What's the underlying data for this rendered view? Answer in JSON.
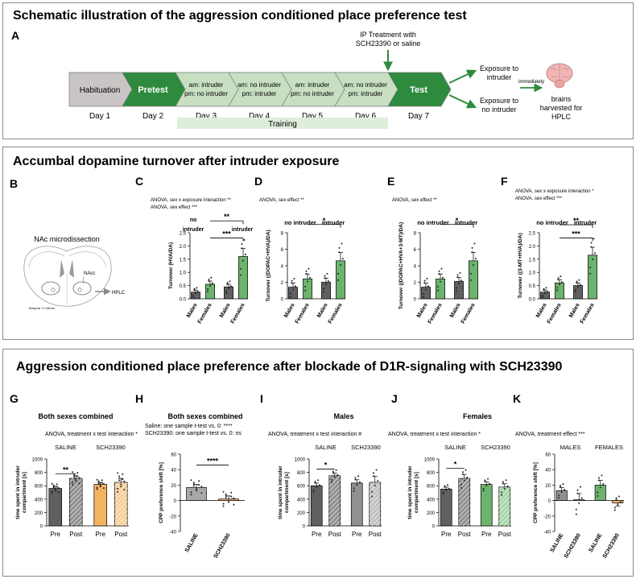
{
  "panelA": {
    "title": "Schematic illustration of the aggression conditioned place preference test",
    "letter": "A",
    "ip_line1": "IP Treatment with",
    "ip_line2": "SCH23390 or saline",
    "stages": [
      {
        "l1": "Habituation",
        "l2": "",
        "day": "Day 1",
        "style": "gray"
      },
      {
        "l1": "Pretest",
        "l2": "",
        "day": "Day 2",
        "style": "dark"
      },
      {
        "l1": "am: intruder",
        "l2": "pm: no intruder",
        "day": "Day 3",
        "style": "light"
      },
      {
        "l1": "am: no intruder",
        "l2": "pm: intruder",
        "day": "Day 4",
        "style": "light"
      },
      {
        "l1": "am: intruder",
        "l2": "pm: no intruder",
        "day": "Day 5",
        "style": "light"
      },
      {
        "l1": "am: no intruder",
        "l2": "pm: intruder",
        "day": "Day 6",
        "style": "light"
      },
      {
        "l1": "Test",
        "l2": "",
        "day": "Day 7",
        "style": "dark"
      }
    ],
    "training": "Training",
    "exp_intruder_1": "Exposure to",
    "exp_intruder_2": "intruder",
    "exp_nointruder_1": "Exposure to",
    "exp_nointruder_2": "no intruder",
    "immediately": "immediately",
    "brains_1": "brains",
    "brains_2": "harvested for",
    "brains_3": "HPLC"
  },
  "panelB": {
    "title": "Accumbal dopamine turnover after intruder exposure",
    "letter": "B",
    "subtitle": "NAc microdissection",
    "nacc": "NAcc",
    "hplc": "HPLC",
    "bregma": "Bregma +1.44mm"
  },
  "panelG": {
    "title": "Aggression conditioned place preference after blockade of D1R-signaling with SCH23390"
  },
  "colors": {
    "dark_green": "#2e8b3e",
    "light_green": "#c8dfc2",
    "gray_bar": "#606060",
    "green_bar": "#6cb36e",
    "orange_bar": "#f3b462",
    "light_gray_bar": "#a8a8a8"
  },
  "chart_data": [
    {
      "id": "C",
      "type": "bar",
      "stats": [
        "ANOVA, sex x exposure interaction **",
        "ANOVA, sex effect ***"
      ],
      "group_labels": [
        "no intruder",
        "intruder"
      ],
      "ylabel": "Turnover (HVA/DA)",
      "ylim": [
        0,
        2.5
      ],
      "ticks": [
        "0.0",
        "0.5",
        "1.0",
        "1.5",
        "2.0",
        "2.5"
      ],
      "tickvals": [
        0,
        0.5,
        1.0,
        1.5,
        2.0,
        2.5
      ],
      "categories": [
        "Males",
        "Females",
        "Males",
        "Females"
      ],
      "values": [
        0.25,
        0.55,
        0.45,
        1.6
      ],
      "errors": [
        0.08,
        0.12,
        0.1,
        0.3
      ],
      "bar_colors": [
        "#606060",
        "#6cb36e",
        "#606060",
        "#6cb36e"
      ],
      "sig": [
        {
          "from": 1,
          "to": 3,
          "label": "**",
          "y": 2.95
        },
        {
          "from": 1,
          "to": 3,
          "label": "***",
          "y": 2.3
        }
      ]
    },
    {
      "id": "D",
      "type": "bar",
      "stats": [
        "ANOVA, sex effect **"
      ],
      "group_labels": [
        "no intruder",
        "intruder"
      ],
      "ylabel": "Turnover ((DOPAC+HVA)/DA)",
      "ylim": [
        0,
        8
      ],
      "ticks": [
        "0",
        "2",
        "4",
        "6",
        "8"
      ],
      "tickvals": [
        0,
        2,
        4,
        6,
        8
      ],
      "categories": [
        "Males",
        "Females",
        "Males",
        "Females"
      ],
      "values": [
        1.4,
        2.4,
        2.0,
        4.6
      ],
      "errors": [
        0.5,
        0.6,
        0.5,
        1.0
      ],
      "bar_colors": [
        "#606060",
        "#6cb36e",
        "#606060",
        "#6cb36e"
      ],
      "sig": [
        {
          "from": 1,
          "to": 3,
          "label": "*",
          "y": 9.0
        }
      ]
    },
    {
      "id": "E",
      "type": "bar",
      "stats": [
        "ANOVA, sex effect **"
      ],
      "group_labels": [
        "no intruder",
        "intruder"
      ],
      "ylabel": "Turnover ((DOPAC+HVA+3-MT)/DA)",
      "ylim": [
        0,
        8
      ],
      "ticks": [
        "0",
        "2",
        "4",
        "6",
        "8"
      ],
      "tickvals": [
        0,
        2,
        4,
        6,
        8
      ],
      "categories": [
        "Males",
        "Females",
        "Males",
        "Females"
      ],
      "values": [
        1.4,
        2.4,
        2.1,
        4.6
      ],
      "errors": [
        0.5,
        0.6,
        0.5,
        1.0
      ],
      "bar_colors": [
        "#606060",
        "#6cb36e",
        "#606060",
        "#6cb36e"
      ],
      "sig": [
        {
          "from": 1,
          "to": 3,
          "label": "*",
          "y": 9.0
        }
      ]
    },
    {
      "id": "F",
      "type": "bar",
      "stats": [
        "ANOVA, sex x exposure interaction *",
        "ANOVA, sex effect ***"
      ],
      "group_labels": [
        "no intruder",
        "intruder"
      ],
      "ylabel": "Turnover ((3-MT+HVA)/DA)",
      "ylim": [
        0,
        2.5
      ],
      "ticks": [
        "0.0",
        "0.5",
        "1.0",
        "1.5",
        "2.0",
        "2.5"
      ],
      "tickvals": [
        0,
        0.5,
        1.0,
        1.5,
        2.0,
        2.5
      ],
      "categories": [
        "Males",
        "Females",
        "Males",
        "Females"
      ],
      "values": [
        0.25,
        0.6,
        0.5,
        1.65
      ],
      "errors": [
        0.08,
        0.12,
        0.1,
        0.3
      ],
      "bar_colors": [
        "#606060",
        "#6cb36e",
        "#606060",
        "#6cb36e"
      ],
      "sig": [
        {
          "from": 1,
          "to": 3,
          "label": "**",
          "y": 2.8
        },
        {
          "from": 1,
          "to": 3,
          "label": "***",
          "y": 2.3
        }
      ]
    },
    {
      "id": "G",
      "type": "bar",
      "heading": "Both sexes combined",
      "stats": [
        "ANOVA, treatment x test interaction *"
      ],
      "group_labels": [
        "SALINE",
        "SCH23390"
      ],
      "ylabel": "time spent in intruder compartment [s]",
      "ylim": [
        0,
        1000
      ],
      "ticks": [
        "0",
        "200",
        "400",
        "600",
        "800",
        "1000"
      ],
      "tickvals": [
        0,
        200,
        400,
        600,
        800,
        1000
      ],
      "categories": [
        "Pre",
        "Post",
        "Pre",
        "Post"
      ],
      "values": [
        560,
        710,
        620,
        650
      ],
      "errors": [
        30,
        40,
        30,
        60
      ],
      "bar_colors": [
        "#606060",
        "#909090",
        "#f3b462",
        "#f7cf98"
      ],
      "hatched": [
        false,
        true,
        false,
        true
      ],
      "sig": [
        {
          "from": 0,
          "to": 1,
          "label": "**",
          "y": 780
        }
      ]
    },
    {
      "id": "H",
      "type": "bar",
      "heading": "Both sexes combined",
      "stats": [
        "Saline: one sample t-test vs. 0: ****",
        "SCH23390: one sample t-test vs. 0: ns"
      ],
      "group_labels": [],
      "ylabel": "CPP preference shift [%]",
      "ylim": [
        -40,
        60
      ],
      "ticks": [
        "-40",
        "-20",
        "0",
        "20",
        "40",
        "60"
      ],
      "tickvals": [
        -40,
        -20,
        0,
        20,
        40,
        60
      ],
      "categories": [
        "SALINE",
        "SCH23390"
      ],
      "values": [
        17,
        2
      ],
      "errors": [
        4,
        4
      ],
      "bar_colors": [
        "#a8a8a8",
        "#f3b462"
      ],
      "sig": [
        {
          "from": 0,
          "to": 1,
          "label": "****",
          "y": 46
        }
      ]
    },
    {
      "id": "I",
      "type": "bar",
      "heading": "Males",
      "stats": [
        "ANOVA, treatment x test interaction #"
      ],
      "group_labels": [
        "SALINE",
        "SCH23390"
      ],
      "ylabel": "time spent in intruder compartment [s]",
      "ylim": [
        0,
        1000
      ],
      "ticks": [
        "0",
        "200",
        "400",
        "600",
        "800",
        "1000"
      ],
      "tickvals": [
        0,
        200,
        400,
        600,
        800,
        1000
      ],
      "categories": [
        "Pre",
        "Post",
        "Pre",
        "Post"
      ],
      "values": [
        600,
        750,
        640,
        650
      ],
      "errors": [
        40,
        40,
        50,
        90
      ],
      "bar_colors": [
        "#606060",
        "#909090",
        "#909090",
        "#c0c0c0"
      ],
      "hatched": [
        false,
        true,
        false,
        true
      ],
      "sig": [
        {
          "from": 0,
          "to": 1,
          "label": "*",
          "y": 850
        }
      ]
    },
    {
      "id": "J",
      "type": "bar",
      "heading": "Females",
      "stats": [
        "ANOVA, treatment x test interaction *"
      ],
      "group_labels": [
        "SALINE",
        "SCH23390"
      ],
      "ylabel": "time spent in intruder compartment [s]",
      "ylim": [
        0,
        1000
      ],
      "ticks": [
        "0",
        "200",
        "400",
        "600",
        "800",
        "1000"
      ],
      "tickvals": [
        0,
        200,
        400,
        600,
        800,
        1000
      ],
      "categories": [
        "Pre",
        "Post",
        "Pre",
        "Post"
      ],
      "values": [
        550,
        710,
        620,
        580
      ],
      "errors": [
        30,
        60,
        40,
        50
      ],
      "bar_colors": [
        "#606060",
        "#909090",
        "#6cb36e",
        "#a7d6a8"
      ],
      "hatched": [
        false,
        true,
        false,
        true
      ],
      "sig": [
        {
          "from": 0,
          "to": 1,
          "label": "*",
          "y": 860
        }
      ]
    },
    {
      "id": "K",
      "type": "bar",
      "stats": [
        "ANOVA, treatment effect ***"
      ],
      "group_labels": [
        "MALES",
        "FEMALES"
      ],
      "ylabel": "CPP preference shift [%]",
      "ylim": [
        -40,
        60
      ],
      "ticks": [
        "-40",
        "-20",
        "0",
        "20",
        "40",
        "60"
      ],
      "tickvals": [
        -40,
        -20,
        0,
        20,
        40,
        60
      ],
      "categories": [
        "SALINE",
        "SCH23390",
        "SALINE",
        "SCH23390"
      ],
      "values": [
        13,
        1,
        20,
        -3
      ],
      "errors": [
        4,
        8,
        6,
        4
      ],
      "bar_colors": [
        "#909090",
        "#f3b462",
        "#6cb36e",
        "#f3b462"
      ],
      "sig": []
    }
  ]
}
